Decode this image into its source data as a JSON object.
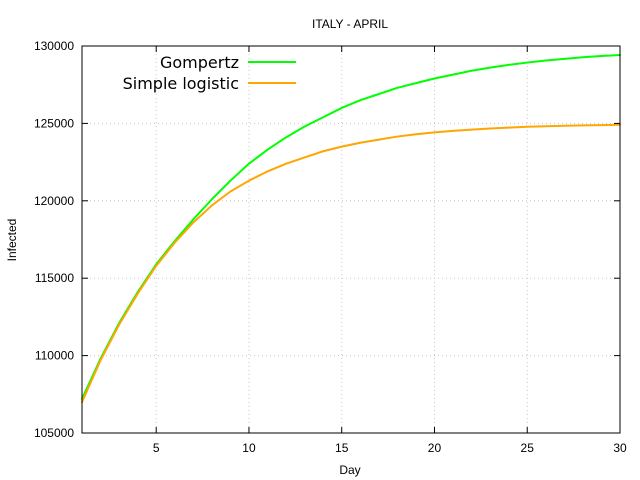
{
  "chart_data": {
    "type": "line",
    "title": "ITALY - APRIL",
    "xlabel": "Day",
    "ylabel": "Infected",
    "xlim": [
      1,
      30
    ],
    "ylim": [
      105000,
      130000
    ],
    "xticks": [
      5,
      10,
      15,
      20,
      25,
      30
    ],
    "yticks": [
      105000,
      110000,
      115000,
      120000,
      125000,
      130000
    ],
    "grid": true,
    "legend_position": "top-left",
    "x": [
      1,
      2,
      3,
      4,
      5,
      6,
      7,
      8,
      9,
      10,
      11,
      12,
      13,
      14,
      15,
      16,
      17,
      18,
      19,
      20,
      21,
      22,
      23,
      24,
      25,
      26,
      27,
      28,
      29,
      30
    ],
    "series": [
      {
        "name": "Gompertz",
        "color": "#00ff00",
        "values": [
          107200,
          109800,
          112100,
          114100,
          115900,
          117400,
          118800,
          120100,
          121300,
          122400,
          123300,
          124100,
          124800,
          125400,
          126000,
          126500,
          126900,
          127300,
          127600,
          127900,
          128150,
          128400,
          128600,
          128780,
          128930,
          129060,
          129170,
          129270,
          129350,
          129420
        ]
      },
      {
        "name": "Simple logistic",
        "color": "#ffa500",
        "values": [
          107000,
          109700,
          112000,
          114000,
          115800,
          117300,
          118600,
          119700,
          120600,
          121300,
          121900,
          122400,
          122800,
          123200,
          123500,
          123750,
          123950,
          124150,
          124300,
          124420,
          124520,
          124600,
          124670,
          124730,
          124780,
          124820,
          124850,
          124870,
          124890,
          124910
        ]
      }
    ]
  }
}
